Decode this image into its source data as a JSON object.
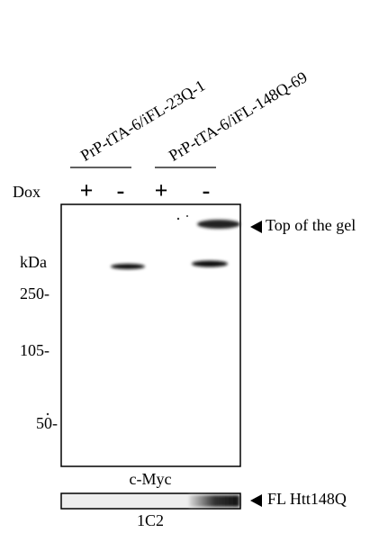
{
  "lanes": {
    "group_labels": [
      "PrP-tTA-6/iFL-23Q-1",
      "PrP-tTA-6/iFL-148Q-69"
    ],
    "dox_label": "Dox",
    "dox_signs": [
      "+",
      "-",
      "+",
      "-"
    ]
  },
  "markers": {
    "unit": "kDa",
    "labels": [
      "250-",
      "105-",
      "50-"
    ]
  },
  "panels": [
    {
      "label": "c-Myc",
      "annotation": "Top of the gel"
    },
    {
      "label": "1C2",
      "annotation": "FL Htt148Q"
    }
  ]
}
